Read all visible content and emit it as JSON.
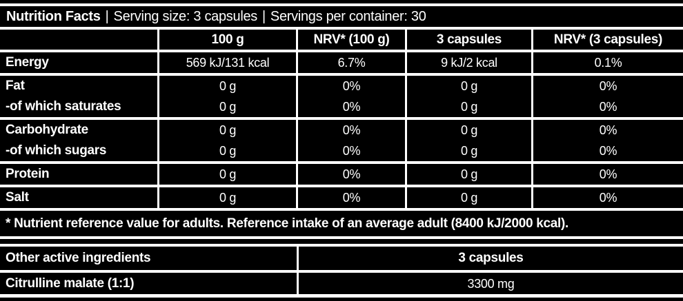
{
  "label": {
    "title": "Nutrition Facts",
    "separator": "|",
    "serving_size": "Serving size: 3 capsules",
    "servings_per_container": "Servings per container: 30"
  },
  "nutrition_table": {
    "headers": [
      "",
      "100 g",
      "NRV* (100 g)",
      "3 capsules",
      "NRV* (3 capsules)"
    ],
    "groups": [
      {
        "rows": [
          {
            "label": "Energy",
            "values": [
              "569 kJ/131 kcal",
              "6.7%",
              "9 kJ/2 kcal",
              "0.1%"
            ]
          }
        ]
      },
      {
        "rows": [
          {
            "label": "Fat",
            "values": [
              "0 g",
              "0%",
              "0 g",
              "0%"
            ]
          },
          {
            "label": "-of which saturates",
            "values": [
              "0 g",
              "0%",
              "0 g",
              "0%"
            ]
          }
        ]
      },
      {
        "rows": [
          {
            "label": "Carbohydrate",
            "values": [
              "0 g",
              "0%",
              "0 g",
              "0%"
            ]
          },
          {
            "label": "-of which sugars",
            "values": [
              "0 g",
              "0%",
              "0 g",
              "0%"
            ]
          }
        ]
      },
      {
        "rows": [
          {
            "label": "Protein",
            "values": [
              "0 g",
              "0%",
              "0 g",
              "0%"
            ]
          }
        ]
      },
      {
        "rows": [
          {
            "label": "Salt",
            "values": [
              "0 g",
              "0%",
              "0 g",
              "0%"
            ]
          }
        ]
      }
    ],
    "footnote": "* Nutrient reference value for adults. Reference intake of an average adult (8400 kJ/2000 kcal)."
  },
  "other_ingredients_table": {
    "headers": [
      "Other active ingredients",
      "3 capsules"
    ],
    "rows": [
      {
        "label": "Citrulline malate (1:1)",
        "value": "3300 mg"
      }
    ]
  },
  "colors": {
    "cell": "#000000",
    "text": "#ffffff",
    "background": "#ffffff"
  }
}
